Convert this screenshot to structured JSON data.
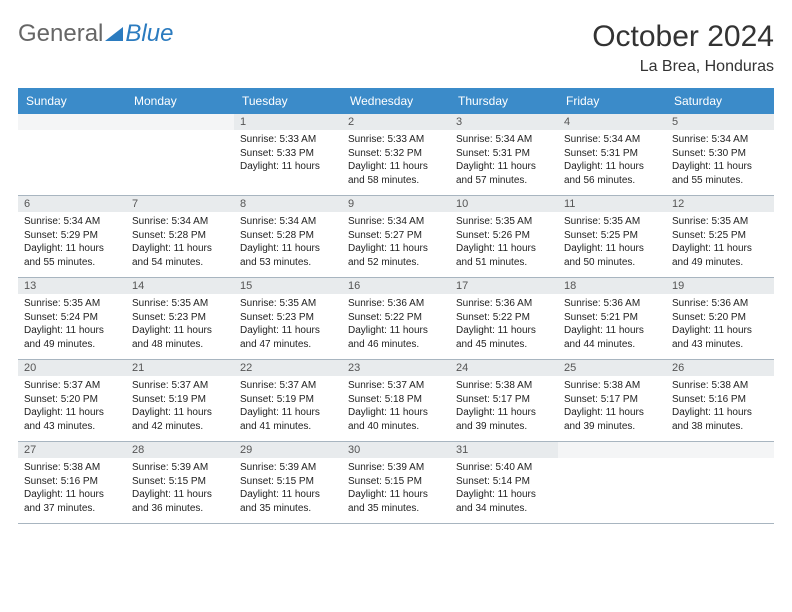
{
  "logo": {
    "text1": "General",
    "text2": "Blue"
  },
  "title": "October 2024",
  "location": "La Brea, Honduras",
  "colors": {
    "header_bg": "#3b8bc9",
    "header_text": "#ffffff",
    "daynum_bg": "#e8ebed",
    "empty_daynum_bg": "#f4f5f6",
    "border": "#a8b5c0",
    "logo_gray": "#666666",
    "logo_blue": "#2b7bbf"
  },
  "weekdays": [
    "Sunday",
    "Monday",
    "Tuesday",
    "Wednesday",
    "Thursday",
    "Friday",
    "Saturday"
  ],
  "weeks": [
    [
      {
        "empty": true
      },
      {
        "empty": true
      },
      {
        "n": "1",
        "sr": "Sunrise: 5:33 AM",
        "ss": "Sunset: 5:33 PM",
        "d1": "Daylight: 11 hours"
      },
      {
        "n": "2",
        "sr": "Sunrise: 5:33 AM",
        "ss": "Sunset: 5:32 PM",
        "d1": "Daylight: 11 hours",
        "d2": "and 58 minutes."
      },
      {
        "n": "3",
        "sr": "Sunrise: 5:34 AM",
        "ss": "Sunset: 5:31 PM",
        "d1": "Daylight: 11 hours",
        "d2": "and 57 minutes."
      },
      {
        "n": "4",
        "sr": "Sunrise: 5:34 AM",
        "ss": "Sunset: 5:31 PM",
        "d1": "Daylight: 11 hours",
        "d2": "and 56 minutes."
      },
      {
        "n": "5",
        "sr": "Sunrise: 5:34 AM",
        "ss": "Sunset: 5:30 PM",
        "d1": "Daylight: 11 hours",
        "d2": "and 55 minutes."
      }
    ],
    [
      {
        "n": "6",
        "sr": "Sunrise: 5:34 AM",
        "ss": "Sunset: 5:29 PM",
        "d1": "Daylight: 11 hours",
        "d2": "and 55 minutes."
      },
      {
        "n": "7",
        "sr": "Sunrise: 5:34 AM",
        "ss": "Sunset: 5:28 PM",
        "d1": "Daylight: 11 hours",
        "d2": "and 54 minutes."
      },
      {
        "n": "8",
        "sr": "Sunrise: 5:34 AM",
        "ss": "Sunset: 5:28 PM",
        "d1": "Daylight: 11 hours",
        "d2": "and 53 minutes."
      },
      {
        "n": "9",
        "sr": "Sunrise: 5:34 AM",
        "ss": "Sunset: 5:27 PM",
        "d1": "Daylight: 11 hours",
        "d2": "and 52 minutes."
      },
      {
        "n": "10",
        "sr": "Sunrise: 5:35 AM",
        "ss": "Sunset: 5:26 PM",
        "d1": "Daylight: 11 hours",
        "d2": "and 51 minutes."
      },
      {
        "n": "11",
        "sr": "Sunrise: 5:35 AM",
        "ss": "Sunset: 5:25 PM",
        "d1": "Daylight: 11 hours",
        "d2": "and 50 minutes."
      },
      {
        "n": "12",
        "sr": "Sunrise: 5:35 AM",
        "ss": "Sunset: 5:25 PM",
        "d1": "Daylight: 11 hours",
        "d2": "and 49 minutes."
      }
    ],
    [
      {
        "n": "13",
        "sr": "Sunrise: 5:35 AM",
        "ss": "Sunset: 5:24 PM",
        "d1": "Daylight: 11 hours",
        "d2": "and 49 minutes."
      },
      {
        "n": "14",
        "sr": "Sunrise: 5:35 AM",
        "ss": "Sunset: 5:23 PM",
        "d1": "Daylight: 11 hours",
        "d2": "and 48 minutes."
      },
      {
        "n": "15",
        "sr": "Sunrise: 5:35 AM",
        "ss": "Sunset: 5:23 PM",
        "d1": "Daylight: 11 hours",
        "d2": "and 47 minutes."
      },
      {
        "n": "16",
        "sr": "Sunrise: 5:36 AM",
        "ss": "Sunset: 5:22 PM",
        "d1": "Daylight: 11 hours",
        "d2": "and 46 minutes."
      },
      {
        "n": "17",
        "sr": "Sunrise: 5:36 AM",
        "ss": "Sunset: 5:22 PM",
        "d1": "Daylight: 11 hours",
        "d2": "and 45 minutes."
      },
      {
        "n": "18",
        "sr": "Sunrise: 5:36 AM",
        "ss": "Sunset: 5:21 PM",
        "d1": "Daylight: 11 hours",
        "d2": "and 44 minutes."
      },
      {
        "n": "19",
        "sr": "Sunrise: 5:36 AM",
        "ss": "Sunset: 5:20 PM",
        "d1": "Daylight: 11 hours",
        "d2": "and 43 minutes."
      }
    ],
    [
      {
        "n": "20",
        "sr": "Sunrise: 5:37 AM",
        "ss": "Sunset: 5:20 PM",
        "d1": "Daylight: 11 hours",
        "d2": "and 43 minutes."
      },
      {
        "n": "21",
        "sr": "Sunrise: 5:37 AM",
        "ss": "Sunset: 5:19 PM",
        "d1": "Daylight: 11 hours",
        "d2": "and 42 minutes."
      },
      {
        "n": "22",
        "sr": "Sunrise: 5:37 AM",
        "ss": "Sunset: 5:19 PM",
        "d1": "Daylight: 11 hours",
        "d2": "and 41 minutes."
      },
      {
        "n": "23",
        "sr": "Sunrise: 5:37 AM",
        "ss": "Sunset: 5:18 PM",
        "d1": "Daylight: 11 hours",
        "d2": "and 40 minutes."
      },
      {
        "n": "24",
        "sr": "Sunrise: 5:38 AM",
        "ss": "Sunset: 5:17 PM",
        "d1": "Daylight: 11 hours",
        "d2": "and 39 minutes."
      },
      {
        "n": "25",
        "sr": "Sunrise: 5:38 AM",
        "ss": "Sunset: 5:17 PM",
        "d1": "Daylight: 11 hours",
        "d2": "and 39 minutes."
      },
      {
        "n": "26",
        "sr": "Sunrise: 5:38 AM",
        "ss": "Sunset: 5:16 PM",
        "d1": "Daylight: 11 hours",
        "d2": "and 38 minutes."
      }
    ],
    [
      {
        "n": "27",
        "sr": "Sunrise: 5:38 AM",
        "ss": "Sunset: 5:16 PM",
        "d1": "Daylight: 11 hours",
        "d2": "and 37 minutes."
      },
      {
        "n": "28",
        "sr": "Sunrise: 5:39 AM",
        "ss": "Sunset: 5:15 PM",
        "d1": "Daylight: 11 hours",
        "d2": "and 36 minutes."
      },
      {
        "n": "29",
        "sr": "Sunrise: 5:39 AM",
        "ss": "Sunset: 5:15 PM",
        "d1": "Daylight: 11 hours",
        "d2": "and 35 minutes."
      },
      {
        "n": "30",
        "sr": "Sunrise: 5:39 AM",
        "ss": "Sunset: 5:15 PM",
        "d1": "Daylight: 11 hours",
        "d2": "and 35 minutes."
      },
      {
        "n": "31",
        "sr": "Sunrise: 5:40 AM",
        "ss": "Sunset: 5:14 PM",
        "d1": "Daylight: 11 hours",
        "d2": "and 34 minutes."
      },
      {
        "empty": true
      },
      {
        "empty": true
      }
    ]
  ]
}
